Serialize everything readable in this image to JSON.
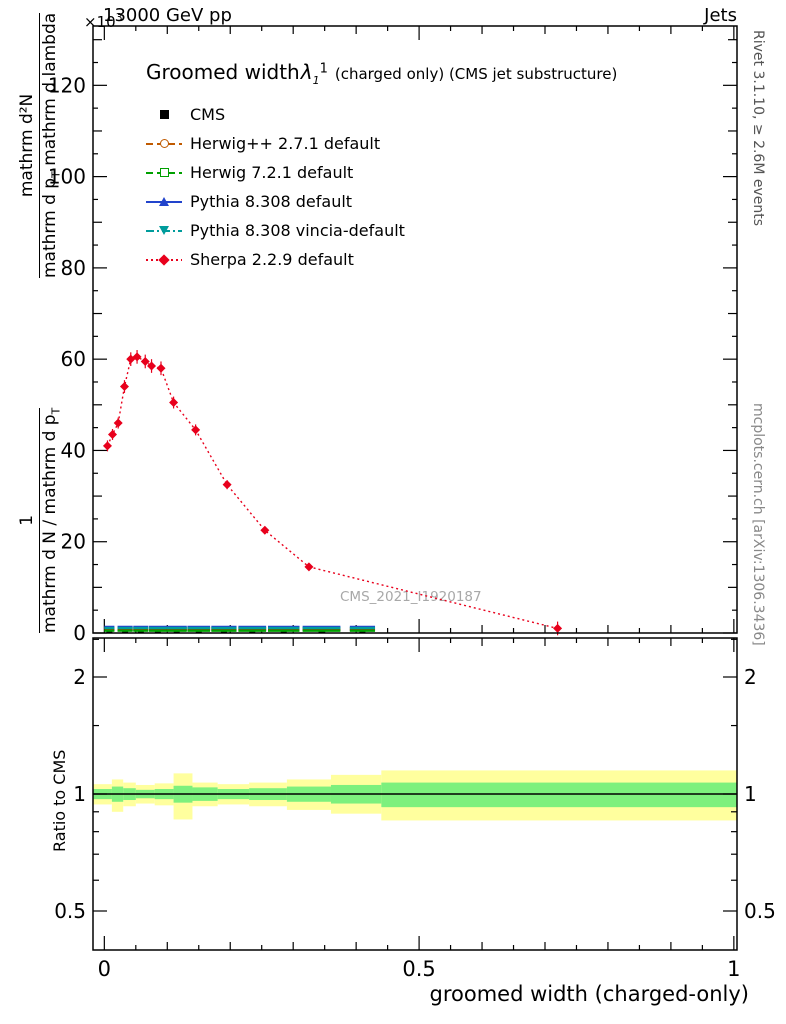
{
  "header": {
    "left": "13000 GeV pp",
    "right": "Jets"
  },
  "y_exponent": {
    "base": "×10",
    "exp": "3"
  },
  "title": {
    "main": "Groomed width",
    "symbol": "λ_1",
    "symbol_sup": "1",
    "suffix": "(charged only) (CMS jet substructure)"
  },
  "watermark": "CMS_2021_I1920187",
  "side_notes": {
    "rivet": "Rivet 3.1.10, ≥ 2.6M events",
    "mcplots": "mcplots.cern.ch [arXiv:1306.3436]"
  },
  "y_axis": {
    "upper_fraction": {
      "numerator": "mathrm d²N",
      "denominator": "mathrm d p_T mathrm d lambda"
    },
    "lower_fraction": {
      "numerator": "1",
      "denominator": "mathrm d N / mathrm d p_T"
    },
    "main_ticks": [
      "0",
      "20",
      "40",
      "60",
      "80",
      "100",
      "120"
    ],
    "main_tick_values": [
      0,
      20,
      40,
      60,
      80,
      100,
      120
    ],
    "ratio_label": "Ratio to CMS",
    "ratio_ticks": [
      "0.5",
      "1",
      "2"
    ],
    "ratio_tick_values": [
      0.5,
      1,
      2
    ]
  },
  "x_axis": {
    "label": "groomed width (charged-only)",
    "ticks": [
      "0",
      "0.5",
      "1"
    ],
    "tick_values": [
      0,
      0.5,
      1
    ]
  },
  "legend": [
    {
      "label": "CMS",
      "marker": "square-filled",
      "line": "none",
      "color": "#000000"
    },
    {
      "label": "Herwig++ 2.7.1 default",
      "marker": "circle-open",
      "line": "dashed",
      "color": "#c05a00"
    },
    {
      "label": "Herwig 7.2.1 default",
      "marker": "square-open",
      "line": "dashed",
      "color": "#00a000"
    },
    {
      "label": "Pythia 8.308 default",
      "marker": "triangle-up-filled",
      "line": "solid",
      "color": "#2244cc"
    },
    {
      "label": "Pythia 8.308 vincia-default",
      "marker": "triangle-down-filled",
      "line": "dash-dot",
      "color": "#009c9c"
    },
    {
      "label": "Sherpa 2.2.9 default",
      "marker": "diamond-filled",
      "line": "dotted",
      "color": "#e8001c"
    }
  ],
  "chart_data": [
    {
      "type": "line",
      "title": "Groomed width λ_1^1 (charged only) (CMS jet substructure)",
      "xlabel": "groomed width (charged-only)",
      "ylabel": "1/(mathrm d N/mathrm d p_T) × mathrm d²N/(mathrm d p_T mathrm d lambda)",
      "y_exponent": "×10³",
      "xlim": [
        -0.018,
        1.005
      ],
      "ylim": [
        0,
        133
      ],
      "grid": false,
      "legend_position": "top-left",
      "bin_halfwidths": [
        0.008,
        0.012,
        0.012,
        0.014,
        0.016,
        0.018,
        0.02,
        0.022,
        0.025,
        0.03,
        0.02
      ],
      "series": [
        {
          "name": "CMS",
          "color": "#000000",
          "marker": "square-filled",
          "line": "none",
          "x": [
            0.008,
            0.033,
            0.058,
            0.085,
            0.115,
            0.15,
            0.19,
            0.235,
            0.285,
            0.345,
            0.41
          ],
          "y": [
            0.7,
            0.7,
            0.7,
            0.7,
            0.7,
            0.7,
            0.7,
            0.7,
            0.7,
            0.7,
            0.7
          ]
        },
        {
          "name": "Herwig++ 2.7.1 default",
          "color": "#c05a00",
          "marker": "circle-open",
          "line": "dashed",
          "x": [
            0.008,
            0.033,
            0.058,
            0.085,
            0.115,
            0.15,
            0.19,
            0.235,
            0.285,
            0.345,
            0.41
          ],
          "y": [
            1.0,
            1.0,
            1.0,
            1.0,
            1.0,
            1.0,
            1.0,
            1.0,
            1.0,
            1.0,
            1.0
          ]
        },
        {
          "name": "Herwig 7.2.1 default",
          "color": "#00a000",
          "marker": "square-open",
          "line": "dashed",
          "x": [
            0.008,
            0.033,
            0.058,
            0.085,
            0.115,
            0.15,
            0.19,
            0.235,
            0.285,
            0.345,
            0.41
          ],
          "y": [
            0.5,
            0.5,
            0.5,
            0.5,
            0.5,
            0.5,
            0.5,
            0.5,
            0.5,
            0.5,
            0.5
          ]
        },
        {
          "name": "Pythia 8.308 default",
          "color": "#2244cc",
          "marker": "triangle-up-filled",
          "line": "solid",
          "x": [
            0.008,
            0.033,
            0.058,
            0.085,
            0.115,
            0.15,
            0.19,
            0.235,
            0.285,
            0.345,
            0.41
          ],
          "y": [
            1.35,
            1.35,
            1.35,
            1.35,
            1.35,
            1.35,
            1.35,
            1.35,
            1.35,
            1.35,
            1.35
          ]
        },
        {
          "name": "Pythia 8.308 vincia-default",
          "color": "#009c9c",
          "marker": "triangle-down-filled",
          "line": "dash-dot",
          "x": [
            0.008,
            0.033,
            0.058,
            0.085,
            0.115,
            0.15,
            0.19,
            0.235,
            0.285,
            0.345,
            0.41
          ],
          "y": [
            1.1,
            1.1,
            1.1,
            1.1,
            1.1,
            1.1,
            1.1,
            1.1,
            1.1,
            1.1,
            1.1
          ]
        },
        {
          "name": "Sherpa 2.2.9 default",
          "color": "#e8001c",
          "marker": "diamond-filled",
          "line": "dotted",
          "x": [
            0.005,
            0.013,
            0.022,
            0.032,
            0.042,
            0.052,
            0.065,
            0.075,
            0.09,
            0.11,
            0.145,
            0.195,
            0.255,
            0.325,
            0.72
          ],
          "y": [
            41,
            43.5,
            46,
            54,
            60,
            60.5,
            59.5,
            58.5,
            58,
            50.5,
            44.5,
            32.5,
            22.5,
            14.5,
            1.0
          ],
          "ey": [
            1.2,
            1.2,
            1.2,
            1.4,
            1.5,
            1.5,
            1.5,
            1.5,
            1.5,
            1.3,
            1.2,
            1.0,
            0.8,
            0.7,
            1.5
          ]
        }
      ]
    },
    {
      "type": "area",
      "title": "Ratio to CMS",
      "xlabel": "groomed width (charged-only)",
      "ylabel": "Ratio to CMS",
      "yscale": "log",
      "ylim": [
        0.4,
        2.52
      ],
      "yticks": [
        0.5,
        1,
        2
      ],
      "yticks_minor": [
        0.6,
        0.7,
        0.8,
        0.9,
        1.5,
        2.5
      ],
      "center_line": 1.0,
      "band_colors": {
        "outer": "#ffff9e",
        "inner": "#7df07d"
      },
      "bands": [
        {
          "x0": -0.018,
          "x1": 0.012,
          "outer": [
            0.94,
            1.06
          ],
          "inner": [
            0.97,
            1.03
          ]
        },
        {
          "x0": 0.012,
          "x1": 0.03,
          "outer": [
            0.9,
            1.09
          ],
          "inner": [
            0.955,
            1.045
          ]
        },
        {
          "x0": 0.03,
          "x1": 0.05,
          "outer": [
            0.93,
            1.07
          ],
          "inner": [
            0.965,
            1.035
          ]
        },
        {
          "x0": 0.05,
          "x1": 0.08,
          "outer": [
            0.945,
            1.055
          ],
          "inner": [
            0.975,
            1.025
          ]
        },
        {
          "x0": 0.08,
          "x1": 0.11,
          "outer": [
            0.935,
            1.065
          ],
          "inner": [
            0.97,
            1.03
          ]
        },
        {
          "x0": 0.11,
          "x1": 0.14,
          "outer": [
            0.86,
            1.13
          ],
          "inner": [
            0.95,
            1.05
          ]
        },
        {
          "x0": 0.14,
          "x1": 0.18,
          "outer": [
            0.93,
            1.07
          ],
          "inner": [
            0.96,
            1.04
          ]
        },
        {
          "x0": 0.18,
          "x1": 0.23,
          "outer": [
            0.94,
            1.06
          ],
          "inner": [
            0.97,
            1.03
          ]
        },
        {
          "x0": 0.23,
          "x1": 0.29,
          "outer": [
            0.93,
            1.07
          ],
          "inner": [
            0.965,
            1.035
          ]
        },
        {
          "x0": 0.29,
          "x1": 0.36,
          "outer": [
            0.91,
            1.09
          ],
          "inner": [
            0.955,
            1.045
          ]
        },
        {
          "x0": 0.36,
          "x1": 0.44,
          "outer": [
            0.89,
            1.12
          ],
          "inner": [
            0.945,
            1.055
          ]
        },
        {
          "x0": 0.44,
          "x1": 1.005,
          "outer": [
            0.855,
            1.15
          ],
          "inner": [
            0.925,
            1.07
          ]
        }
      ]
    }
  ]
}
